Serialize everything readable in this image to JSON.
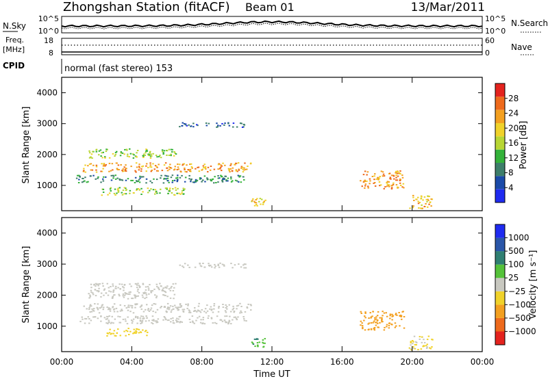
{
  "header": {
    "station": "Zhongshan Station (fitACF)",
    "beam": "Beam 01",
    "date": "13/Mar/2011"
  },
  "top_panels": {
    "nsky_label": "N.Sky",
    "nsky_ticks": [
      "10^5",
      "10^0"
    ],
    "nsearch_label": "N.Search",
    "nsearch_ticks": [
      "10^5",
      "10^0"
    ],
    "freq_label_1": "Freq.",
    "freq_label_2": "[MHz]",
    "freq_ticks": [
      "18",
      "8"
    ],
    "nave_label": "Nave",
    "nave_ticks": [
      "60",
      "0"
    ],
    "cpid_label": "CPID",
    "cpid_text": "normal (fast stereo) 153"
  },
  "colors": {
    "frame": "#000000",
    "power_scale": [
      "#1f2bf0",
      "#1a4aa8",
      "#3d7e6a",
      "#34b23a",
      "#b8d634",
      "#f0d22a",
      "#f3a020",
      "#ee6a1c",
      "#e4231e"
    ],
    "velocity_scale": [
      "#e4231e",
      "#ee6a1c",
      "#f3a020",
      "#f0d22a",
      "#c8c8c0",
      "#55c23a",
      "#2f7f72",
      "#2a56a8",
      "#1f2bf0"
    ]
  },
  "chart_data": [
    {
      "type": "heatmap",
      "name": "power",
      "xlabel": "Time UT",
      "ylabel": "Slant Range [km]",
      "x_ticks": [
        "00:00",
        "04:00",
        "08:00",
        "12:00",
        "16:00",
        "20:00",
        "00:00"
      ],
      "xlim_hours": [
        0,
        24
      ],
      "y_ticks": [
        "4000",
        "3000",
        "2000",
        "1000"
      ],
      "ylim": [
        180,
        4500
      ],
      "colorbar_label": "Power [dB]",
      "colorbar_ticks": [
        "28",
        "24",
        "20",
        "16",
        "12",
        "8",
        "4"
      ],
      "colorbar_range": [
        0,
        30
      ],
      "echo_regions": [
        {
          "t": [
            1.2,
            10.8
          ],
          "r": [
            1450,
            1750
          ],
          "level": 22
        },
        {
          "t": [
            1.5,
            6.5
          ],
          "r": [
            1900,
            2200
          ],
          "level": 14
        },
        {
          "t": [
            0.8,
            10.5
          ],
          "r": [
            1100,
            1350
          ],
          "level": 9
        },
        {
          "t": [
            2.2,
            7.0
          ],
          "r": [
            700,
            950
          ],
          "level": 15
        },
        {
          "t": [
            10.8,
            11.6
          ],
          "r": [
            350,
            650
          ],
          "level": 18
        },
        {
          "t": [
            17.0,
            19.5
          ],
          "r": [
            900,
            1500
          ],
          "level": 22
        },
        {
          "t": [
            19.8,
            21.2
          ],
          "r": [
            250,
            700
          ],
          "level": 20
        },
        {
          "t": [
            6.5,
            10.5
          ],
          "r": [
            2900,
            3050
          ],
          "level": 6
        }
      ]
    },
    {
      "type": "heatmap",
      "name": "velocity",
      "xlabel": "Time UT",
      "ylabel": "Slant Range [km]",
      "x_ticks": [
        "00:00",
        "04:00",
        "08:00",
        "12:00",
        "16:00",
        "20:00",
        "00:00"
      ],
      "xlim_hours": [
        0,
        24
      ],
      "y_ticks": [
        "4000",
        "3000",
        "2000",
        "1000"
      ],
      "ylim": [
        180,
        4500
      ],
      "colorbar_label": "Velocity [m s⁻¹]",
      "colorbar_ticks": [
        "1000",
        "500",
        "100",
        "25",
        "−25",
        "−100",
        "−500",
        "−1000"
      ],
      "colorbar_range": [
        -1000,
        1000
      ],
      "echo_regions": [
        {
          "t": [
            1.2,
            10.8
          ],
          "r": [
            1450,
            1750
          ],
          "level": 0
        },
        {
          "t": [
            1.5,
            6.5
          ],
          "r": [
            1900,
            2400
          ],
          "level": 0
        },
        {
          "t": [
            0.8,
            10.5
          ],
          "r": [
            1100,
            1350
          ],
          "level": 0
        },
        {
          "t": [
            2.5,
            5.0
          ],
          "r": [
            700,
            950
          ],
          "level": -200
        },
        {
          "t": [
            10.8,
            11.6
          ],
          "r": [
            350,
            650
          ],
          "level": 300
        },
        {
          "t": [
            17.0,
            19.5
          ],
          "r": [
            900,
            1500
          ],
          "level": -450
        },
        {
          "t": [
            19.8,
            21.2
          ],
          "r": [
            250,
            700
          ],
          "level": -150
        },
        {
          "t": [
            6.5,
            10.5
          ],
          "r": [
            2900,
            3050
          ],
          "level": 0
        }
      ]
    }
  ]
}
